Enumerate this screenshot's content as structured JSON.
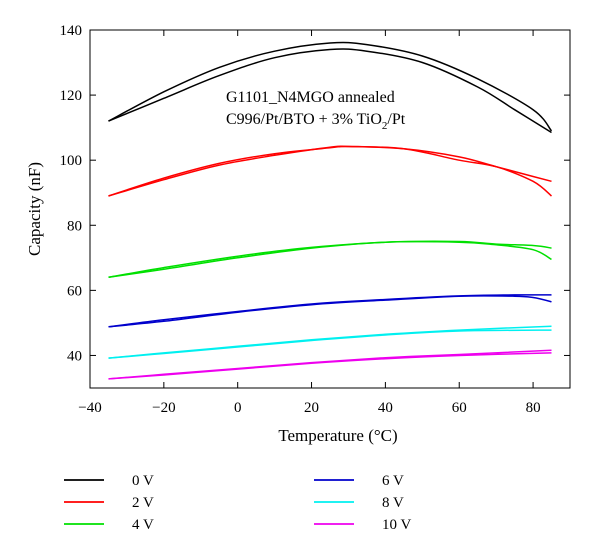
{
  "chart_data": {
    "type": "line",
    "annotation": {
      "line1": "G1101_N4MGO annealed",
      "line2_parts": [
        "C996/Pt/BTO + 3% TiO",
        "2",
        "/Pt"
      ]
    },
    "xlabel": "Temperature (°C)",
    "ylabel": "Capacity (nF)",
    "xlim": [
      -40,
      90
    ],
    "ylim": [
      30,
      140
    ],
    "xticks": [
      -40,
      -20,
      0,
      20,
      40,
      60,
      80
    ],
    "yticks": [
      40,
      60,
      80,
      100,
      120,
      140
    ],
    "grid": false,
    "legend_position": "bottom",
    "series": [
      {
        "name": "0 V",
        "color": "#000000",
        "heating": [
          [
            -35,
            112.0
          ],
          [
            -20,
            121.0
          ],
          [
            -5,
            128.5
          ],
          [
            10,
            133.5
          ],
          [
            25,
            136.0
          ],
          [
            35,
            135.5
          ],
          [
            50,
            132.0
          ],
          [
            65,
            125.0
          ],
          [
            80,
            115.5
          ],
          [
            85,
            109.0
          ]
        ],
        "cooling": [
          [
            -35,
            112.0
          ],
          [
            -20,
            119.0
          ],
          [
            -5,
            126.0
          ],
          [
            10,
            131.5
          ],
          [
            25,
            134.0
          ],
          [
            35,
            133.5
          ],
          [
            50,
            130.0
          ],
          [
            65,
            122.5
          ],
          [
            75,
            115.5
          ],
          [
            85,
            108.5
          ]
        ]
      },
      {
        "name": "2 V",
        "color": "#ff0000",
        "heating": [
          [
            -35,
            89.0
          ],
          [
            -20,
            94.5
          ],
          [
            -5,
            99.0
          ],
          [
            10,
            102.0
          ],
          [
            25,
            103.8
          ],
          [
            30,
            104.2
          ],
          [
            45,
            103.5
          ],
          [
            60,
            101.0
          ],
          [
            70,
            98.0
          ],
          [
            80,
            95.0
          ],
          [
            85,
            93.5
          ]
        ],
        "cooling": [
          [
            -35,
            89.0
          ],
          [
            -20,
            94.0
          ],
          [
            -5,
            98.5
          ],
          [
            10,
            101.5
          ],
          [
            25,
            104.0
          ],
          [
            30,
            104.2
          ],
          [
            45,
            103.5
          ],
          [
            60,
            100.0
          ],
          [
            70,
            98.0
          ],
          [
            80,
            93.5
          ],
          [
            85,
            89.0
          ]
        ]
      },
      {
        "name": "4 V",
        "color": "#00e000",
        "heating": [
          [
            -35,
            64.0
          ],
          [
            -20,
            67.0
          ],
          [
            0,
            70.5
          ],
          [
            20,
            73.2
          ],
          [
            40,
            74.8
          ],
          [
            60,
            75.0
          ],
          [
            70,
            74.2
          ],
          [
            80,
            73.8
          ],
          [
            85,
            73.0
          ]
        ],
        "cooling": [
          [
            -35,
            64.0
          ],
          [
            -20,
            66.5
          ],
          [
            0,
            70.0
          ],
          [
            20,
            73.0
          ],
          [
            40,
            74.8
          ],
          [
            60,
            74.8
          ],
          [
            70,
            74.0
          ],
          [
            80,
            72.5
          ],
          [
            85,
            69.5
          ]
        ]
      },
      {
        "name": "6 V",
        "color": "#0000cc",
        "heating": [
          [
            -35,
            48.8
          ],
          [
            -20,
            51.0
          ],
          [
            0,
            53.5
          ],
          [
            20,
            55.8
          ],
          [
            40,
            57.2
          ],
          [
            60,
            58.3
          ],
          [
            75,
            58.6
          ],
          [
            85,
            58.6
          ]
        ],
        "cooling": [
          [
            -35,
            48.8
          ],
          [
            -20,
            50.5
          ],
          [
            0,
            53.3
          ],
          [
            20,
            55.6
          ],
          [
            40,
            57.0
          ],
          [
            60,
            58.2
          ],
          [
            75,
            58.2
          ],
          [
            80,
            57.8
          ],
          [
            85,
            56.5
          ]
        ]
      },
      {
        "name": "8 V",
        "color": "#00f0f0",
        "heating": [
          [
            -35,
            39.2
          ],
          [
            -20,
            40.8
          ],
          [
            0,
            42.8
          ],
          [
            20,
            44.8
          ],
          [
            40,
            46.5
          ],
          [
            60,
            47.8
          ],
          [
            85,
            49.0
          ]
        ],
        "cooling": [
          [
            -35,
            39.2
          ],
          [
            -20,
            40.6
          ],
          [
            0,
            42.6
          ],
          [
            20,
            44.6
          ],
          [
            40,
            46.3
          ],
          [
            60,
            47.5
          ],
          [
            85,
            47.8
          ]
        ]
      },
      {
        "name": "10 V",
        "color": "#ee00ee",
        "heating": [
          [
            -35,
            32.8
          ],
          [
            -20,
            34.2
          ],
          [
            0,
            36.0
          ],
          [
            20,
            37.8
          ],
          [
            40,
            39.3
          ],
          [
            60,
            40.3
          ],
          [
            85,
            41.6
          ]
        ],
        "cooling": [
          [
            -35,
            32.8
          ],
          [
            -20,
            34.0
          ],
          [
            0,
            35.8
          ],
          [
            20,
            37.6
          ],
          [
            40,
            39.0
          ],
          [
            60,
            40.0
          ],
          [
            85,
            40.8
          ]
        ]
      }
    ]
  }
}
